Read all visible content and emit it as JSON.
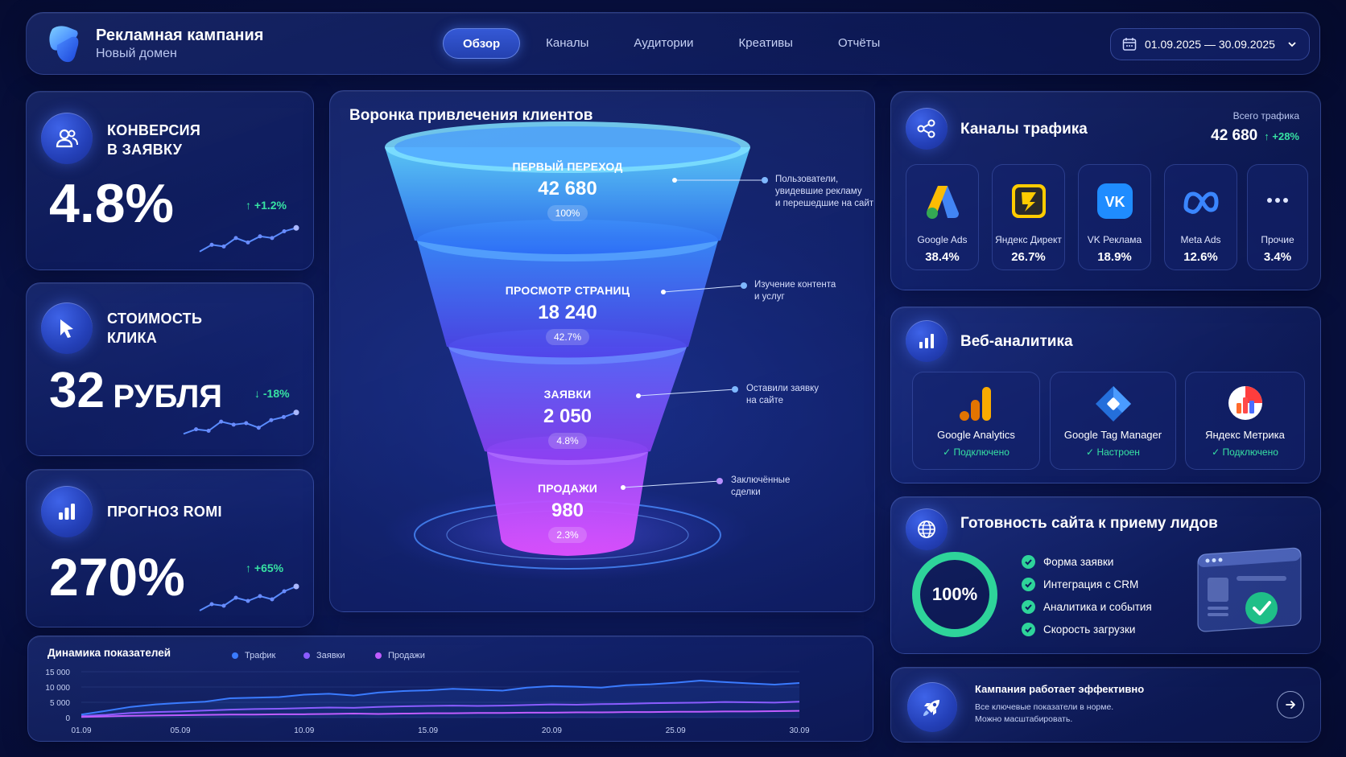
{
  "header": {
    "title": "Рекламная кампания",
    "subtitle": "Новый домен",
    "tabs": [
      {
        "label": "Обзор",
        "active": true
      },
      {
        "label": "Каналы"
      },
      {
        "label": "Аудитории"
      },
      {
        "label": "Креативы"
      },
      {
        "label": "Отчёты"
      }
    ],
    "date_range": "01.09.2025 — 30.09.2025"
  },
  "kpis": [
    {
      "title_line1": "КОНВЕРСИЯ",
      "title_line2": "В ЗАЯВКУ",
      "value": "4.8%",
      "delta": "+1.2%",
      "trend": [
        0.15,
        0.35,
        0.3,
        0.55,
        0.42,
        0.6,
        0.55,
        0.75,
        0.85
      ],
      "icon": "users-icon"
    },
    {
      "title_line1": "СТОИМОСТЬ",
      "title_line2": "КЛИКА",
      "value_number": "32",
      "value_unit": "РУБЛЯ",
      "delta": "-18%",
      "trend": [
        0.15,
        0.3,
        0.25,
        0.55,
        0.45,
        0.5,
        0.35,
        0.6,
        0.7,
        0.85
      ],
      "icon": "cursor-icon"
    },
    {
      "title_line1": "ПРОГНОЗ ROMI",
      "title_line2": "",
      "value": "270%",
      "delta": "+65%",
      "trend": [
        0.15,
        0.35,
        0.3,
        0.55,
        0.45,
        0.6,
        0.5,
        0.75,
        0.9
      ],
      "icon": "bar-chart-icon"
    }
  ],
  "funnel": {
    "title": "Воронка привлечения клиентов",
    "stages": [
      {
        "label": "ПЕРВЫЙ ПЕРЕХОД",
        "value": "42 680",
        "pct": "100%",
        "note_line1": "Пользователи,",
        "note_line2": "увидевшие рекламу",
        "note_line3": "и перешедшие на сайт"
      },
      {
        "label": "ПРОСМОТР СТРАНИЦ",
        "value": "18 240",
        "pct": "42.7%",
        "note_line1": "Изучение контента",
        "note_line2": "и услуг",
        "note_line3": ""
      },
      {
        "label": "ЗАЯВКИ",
        "value": "2 050",
        "pct": "4.8%",
        "note_line1": "Оставили заявку",
        "note_line2": "на сайте",
        "note_line3": ""
      },
      {
        "label": "ПРОДАЖИ",
        "value": "980",
        "pct": "2.3%",
        "note_line1": "Заключённые",
        "note_line2": "сделки",
        "note_line3": ""
      }
    ]
  },
  "traffic": {
    "title": "Каналы трафика",
    "total_label": "Всего трафика",
    "total_value": "42 680",
    "total_delta": "+28%",
    "channels": [
      {
        "name": "Google Ads",
        "pct": "38.4%",
        "icon": "google-ads-icon"
      },
      {
        "name": "Яндекс Директ",
        "pct": "26.7%",
        "icon": "yandex-direct-icon"
      },
      {
        "name": "VK Реклама",
        "pct": "18.9%",
        "icon": "vk-icon"
      },
      {
        "name": "Meta Ads",
        "pct": "12.6%",
        "icon": "meta-icon"
      },
      {
        "name": "Прочие",
        "pct": "3.4%",
        "icon": "more-icon"
      }
    ]
  },
  "web_analytics": {
    "title": "Веб-аналитика",
    "tools": [
      {
        "name": "Google Analytics",
        "status": "Подключено"
      },
      {
        "name": "Google Tag Manager",
        "status": "Настроен"
      },
      {
        "name": "Яндекс Метрика",
        "status": "Подключено"
      }
    ]
  },
  "readiness": {
    "title": "Готовность сайта к приему лидов",
    "percent": "100%",
    "percent_value": 1.0,
    "items": [
      "Форма заявки",
      "Интеграция с CRM",
      "Аналитика и события",
      "Скорость загрузки"
    ]
  },
  "status": {
    "title": "Кампания работает эффективно",
    "line1": "Все ключевые показатели в норме.",
    "line2": "Можно масштабировать."
  },
  "chart_data": {
    "type": "line",
    "title": "Динамика показателей",
    "x": [
      "01.09",
      "02.09",
      "03.09",
      "04.09",
      "05.09",
      "06.09",
      "07.09",
      "08.09",
      "09.09",
      "10.09",
      "11.09",
      "12.09",
      "13.09",
      "14.09",
      "15.09",
      "16.09",
      "17.09",
      "18.09",
      "19.09",
      "20.09",
      "21.09",
      "22.09",
      "23.09",
      "24.09",
      "25.09",
      "26.09",
      "27.09",
      "28.09",
      "29.09",
      "30.09"
    ],
    "x_ticks": [
      "01.09",
      "05.09",
      "10.09",
      "15.09",
      "20.09",
      "25.09",
      "30.09"
    ],
    "y_ticks": [
      "15 000",
      "10 000",
      "5 000",
      "0"
    ],
    "ylim": [
      0,
      15000
    ],
    "series": [
      {
        "name": "Трафик",
        "color": "#3a7bff",
        "values": [
          1000,
          2200,
          3500,
          4300,
          4800,
          5200,
          6300,
          6500,
          6700,
          7500,
          7800,
          7200,
          8200,
          8700,
          8900,
          9400,
          9100,
          8800,
          9800,
          10300,
          10100,
          9800,
          10600,
          10900,
          11400,
          12100,
          11600,
          11200,
          10800,
          11300
        ]
      },
      {
        "name": "Заявки",
        "color": "#8a5cff",
        "values": [
          500,
          900,
          1500,
          1800,
          2000,
          2300,
          2600,
          2800,
          2900,
          3100,
          3300,
          3200,
          3500,
          3700,
          3800,
          3900,
          3800,
          3900,
          4100,
          4300,
          4200,
          4400,
          4500,
          4700,
          4800,
          4900,
          5100,
          5000,
          4900,
          5200
        ]
      },
      {
        "name": "Продажи",
        "color": "#c05cff",
        "values": [
          200,
          400,
          600,
          700,
          800,
          900,
          1000,
          1000,
          1100,
          1100,
          1200,
          1300,
          1200,
          1300,
          1400,
          1400,
          1500,
          1500,
          1600,
          1600,
          1700,
          1700,
          1800,
          1800,
          1900,
          1900,
          2000,
          2000,
          2100,
          2200
        ]
      }
    ]
  }
}
